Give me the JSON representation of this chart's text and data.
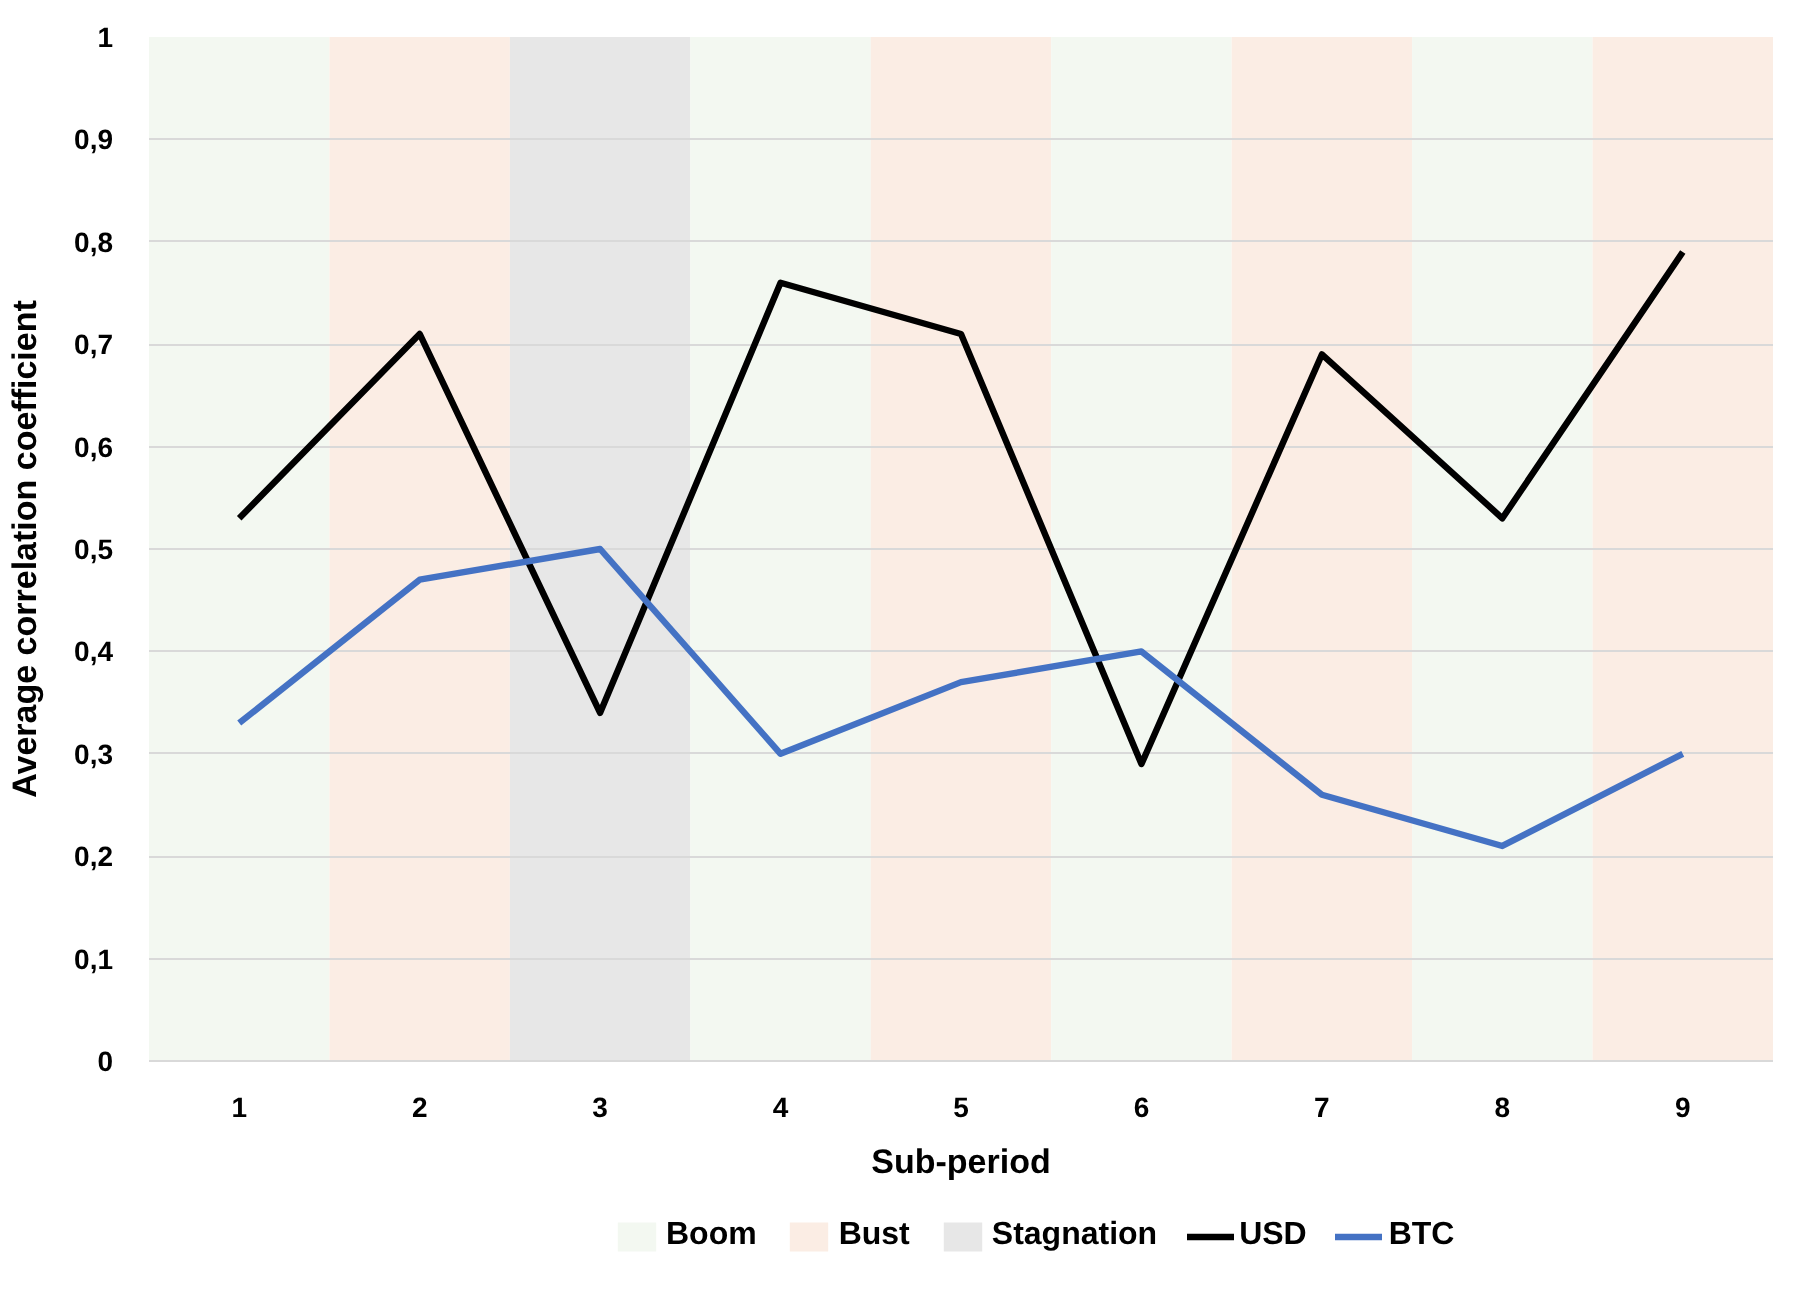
{
  "chart_data": {
    "type": "line",
    "xlabel": "Sub-period",
    "ylabel": "Average correlation coefficient",
    "x": [
      1,
      2,
      3,
      4,
      5,
      6,
      7,
      8,
      9
    ],
    "xlim": [
      0.5,
      9.5
    ],
    "xticks": [
      1,
      2,
      3,
      4,
      5,
      6,
      7,
      8,
      9
    ],
    "ylim": [
      0,
      1
    ],
    "yticks": [
      0,
      {
        "value": 0.1,
        "label": "0,1"
      },
      {
        "value": 0.2,
        "label": "0,2"
      },
      {
        "value": 0.3,
        "label": "0,3"
      },
      {
        "value": 0.4,
        "label": "0,4"
      },
      {
        "value": 0.5,
        "label": "0,5"
      },
      {
        "value": 0.6,
        "label": "0,6"
      },
      {
        "value": 0.7,
        "label": "0,7"
      },
      {
        "value": 0.8,
        "label": "0,8"
      },
      {
        "value": 0.9,
        "label": "0,9"
      },
      1
    ],
    "grid": "y",
    "legend": "bottom",
    "series": [
      {
        "name": "USD",
        "color": "#000000",
        "values": [
          0.53,
          0.71,
          0.34,
          0.76,
          0.71,
          0.29,
          0.69,
          0.53,
          0.79
        ]
      },
      {
        "name": "BTC",
        "color": "#4472c4",
        "values": [
          0.33,
          0.47,
          0.5,
          0.3,
          0.37,
          0.4,
          0.26,
          0.21,
          0.3
        ]
      }
    ],
    "bands": [
      {
        "axis": "x",
        "from": 0.5,
        "to": 1.5,
        "label": "Boom",
        "color": "#f3f8f1"
      },
      {
        "axis": "x",
        "from": 1.5,
        "to": 2.5,
        "label": "Bust",
        "color": "#fbede4"
      },
      {
        "axis": "x",
        "from": 2.5,
        "to": 3.5,
        "label": "Stagnation",
        "color": "#e7e7e7"
      },
      {
        "axis": "x",
        "from": 3.5,
        "to": 4.5,
        "color": "#f3f8f1"
      },
      {
        "axis": "x",
        "from": 4.5,
        "to": 5.5,
        "color": "#fbede4"
      },
      {
        "axis": "x",
        "from": 5.5,
        "to": 6.5,
        "color": "#f3f8f1"
      },
      {
        "axis": "x",
        "from": 6.5,
        "to": 7.5,
        "color": "#fbede4"
      },
      {
        "axis": "x",
        "from": 7.5,
        "to": 8.5,
        "color": "#f3f8f1"
      },
      {
        "axis": "x",
        "from": 8.5,
        "to": 9.5,
        "color": "#fbede4"
      }
    ]
  }
}
